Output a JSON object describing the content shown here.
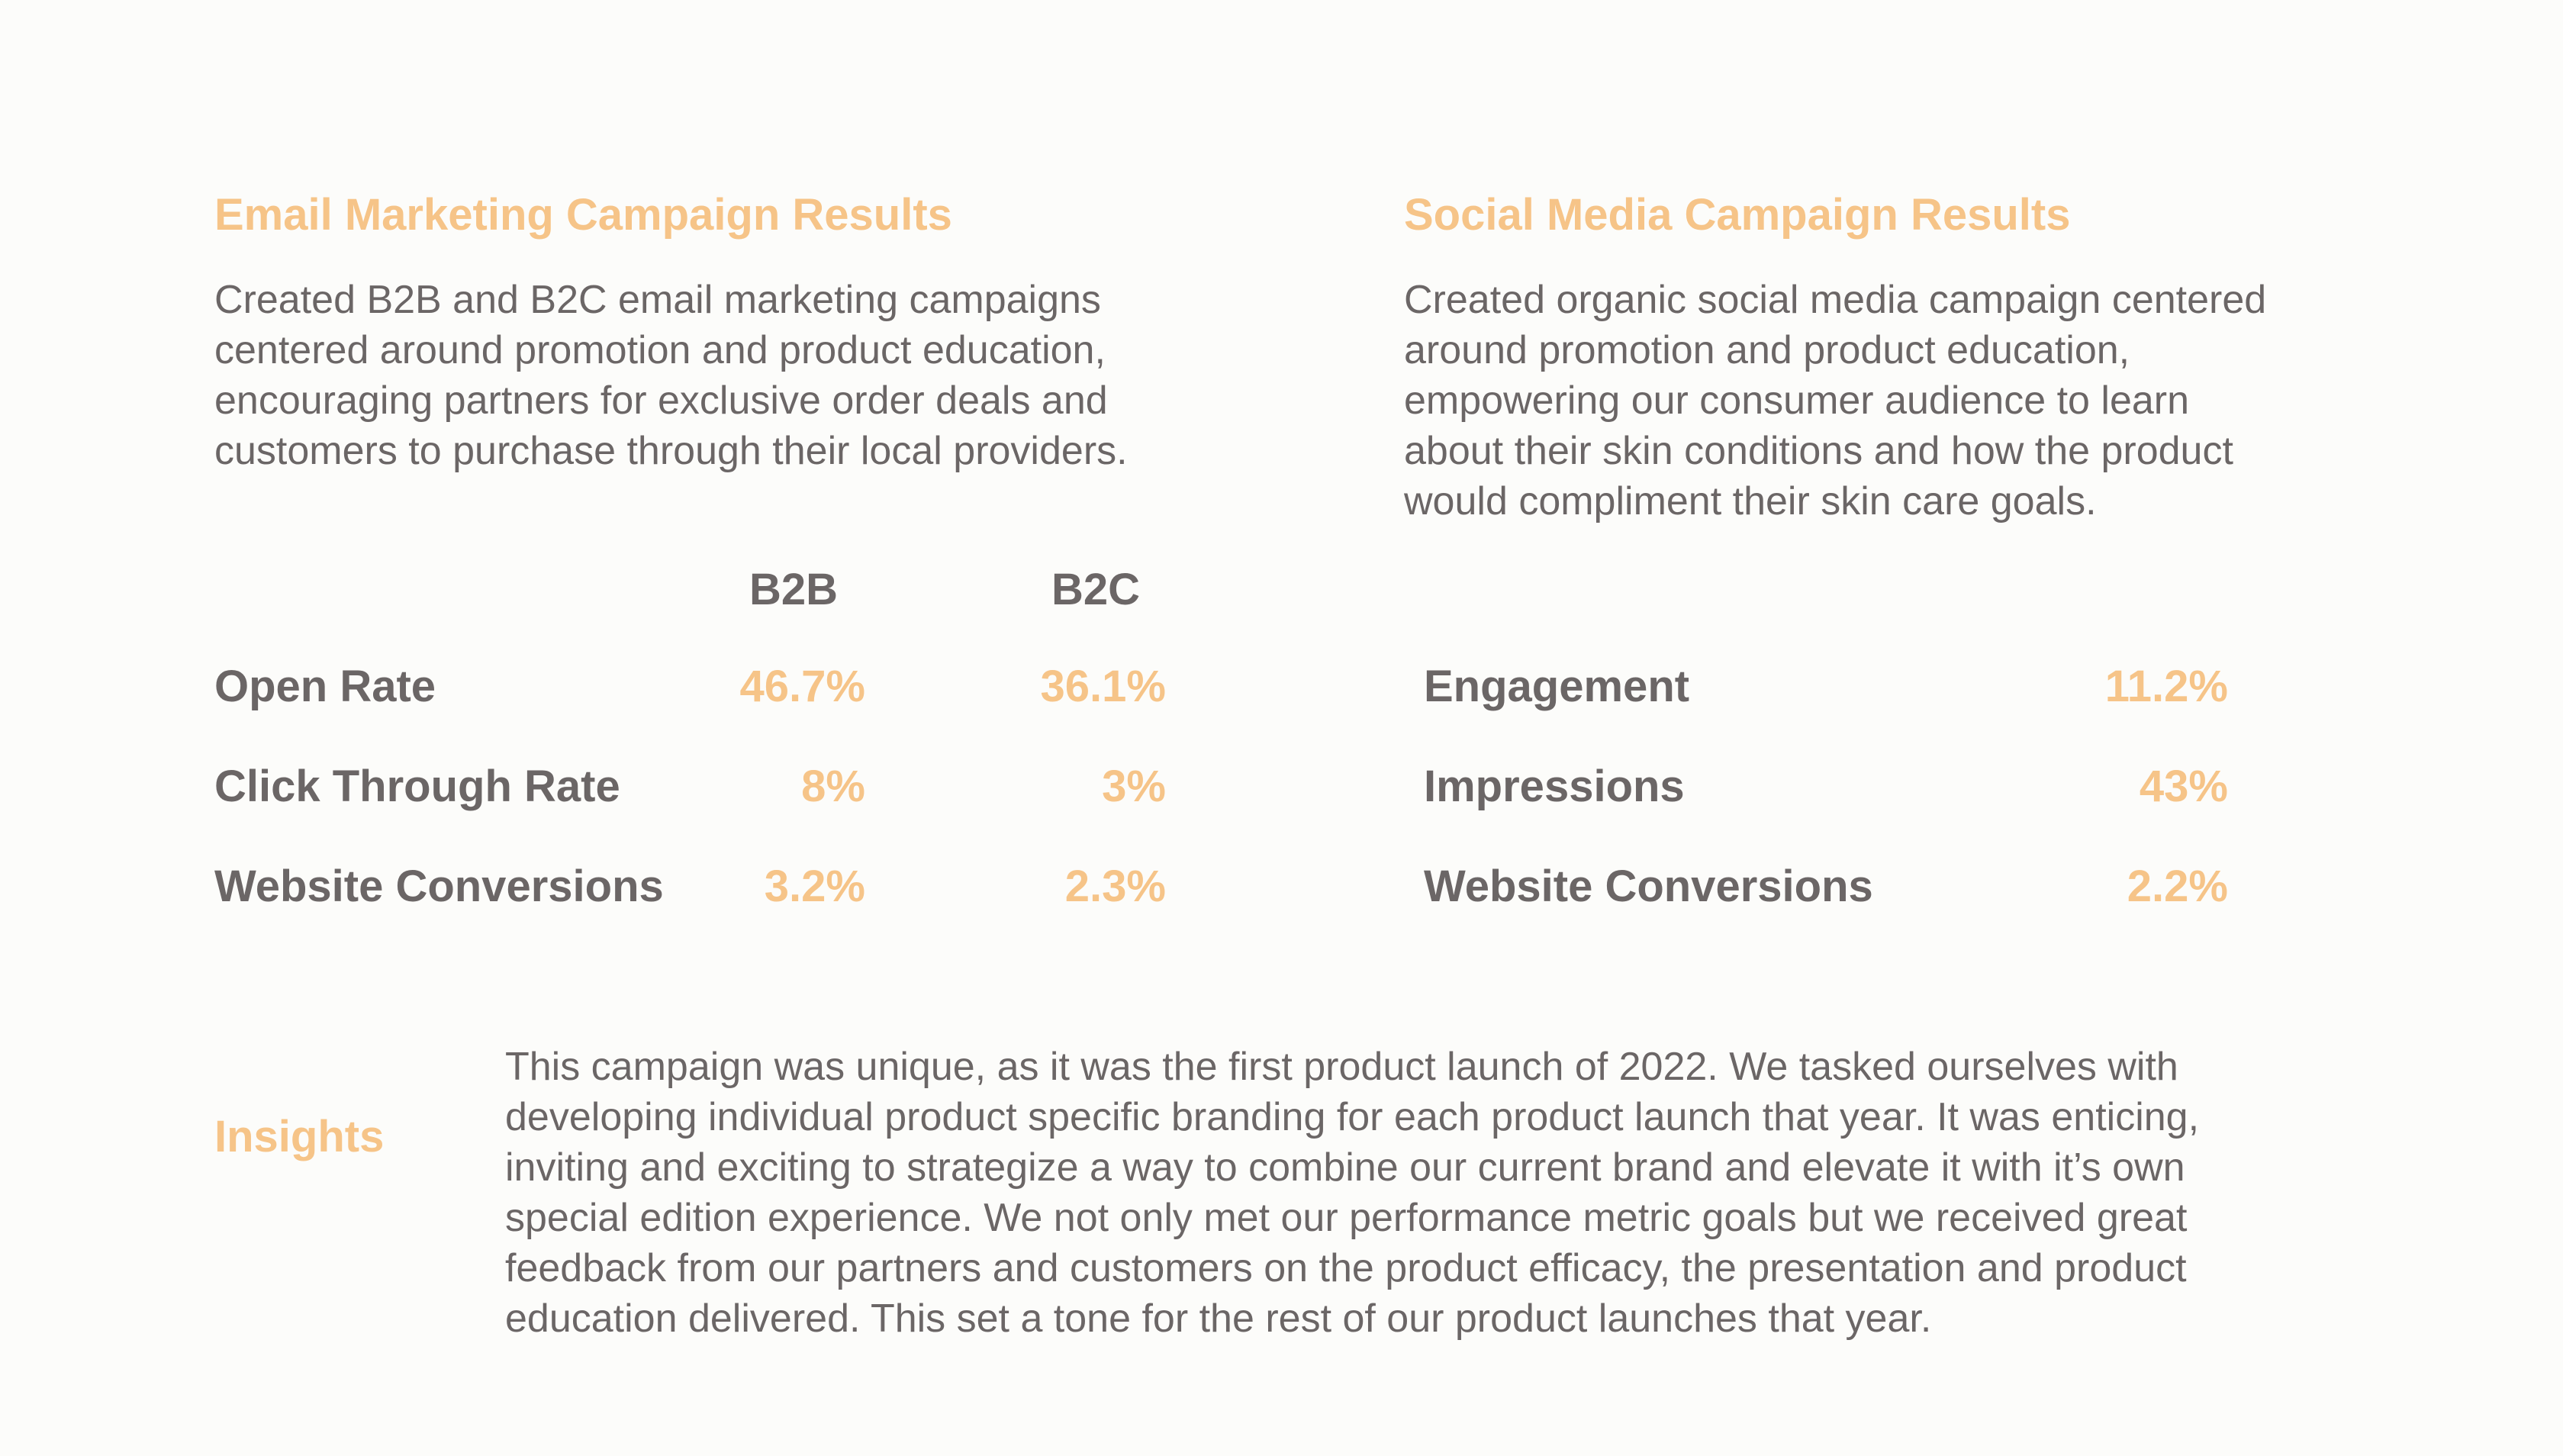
{
  "email": {
    "title": "Email Marketing Campaign Results",
    "description_lines": [
      "Created B2B and B2C email marketing campaigns",
      "centered around promotion and product education,",
      "encouraging partners for exclusive order deals and",
      "customers to purchase through their local providers."
    ],
    "columns": [
      "B2B",
      "B2C"
    ],
    "rows": [
      {
        "label": "Open Rate",
        "b2b": "46.7%",
        "b2c": "36.1%"
      },
      {
        "label": "Click Through Rate",
        "b2b": "8%",
        "b2c": "3%"
      },
      {
        "label": "Website Conversions",
        "b2b": "3.2%",
        "b2c": "2.3%"
      }
    ]
  },
  "social": {
    "title": "Social Media Campaign Results",
    "description_lines": [
      "Created organic social media campaign centered",
      "around promotion and product education,",
      "empowering our consumer audience to learn",
      "about their skin conditions and how the product",
      "would compliment their skin care goals."
    ],
    "rows": [
      {
        "label": "Engagement",
        "value": "11.2%"
      },
      {
        "label": "Impressions",
        "value": "43%"
      },
      {
        "label": "Website Conversions",
        "value": "2.2%"
      }
    ]
  },
  "insights": {
    "title": "Insights",
    "lines": [
      "This campaign was unique, as it was the first product launch of 2022. We tasked ourselves with",
      "developing individual product specific branding for each product launch that year. It was enticing,",
      "inviting and exciting to strategize a way to combine our current brand and elevate it with it’s own",
      "special edition experience. We not only met our performance metric goals but we received great",
      "feedback from our partners and customers on the product efficacy, the presentation and product",
      "education delivered. This set a tone for the rest of our product launches that year."
    ]
  },
  "colors": {
    "accent": "#f6c488",
    "text": "#6b6666",
    "background": "#fcfcfa"
  }
}
